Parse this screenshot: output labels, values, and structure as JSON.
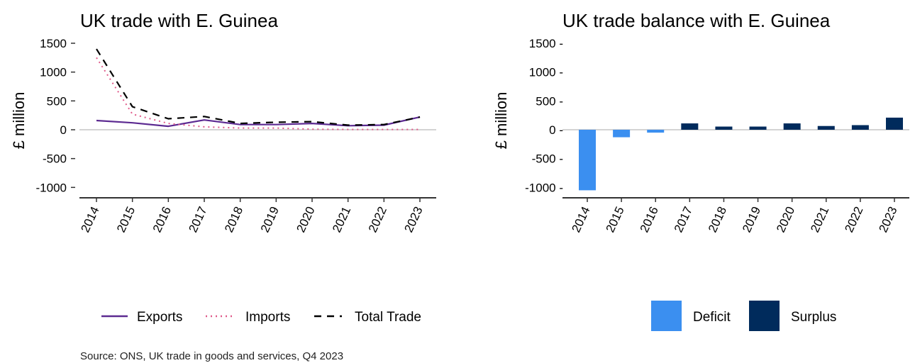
{
  "chart_data": [
    {
      "type": "line",
      "title": "UK trade with E. Guinea",
      "ylabel": "£ million",
      "xlabel": "",
      "x": [
        "2014",
        "2015",
        "2016",
        "2017",
        "2018",
        "2019",
        "2020",
        "2021",
        "2022",
        "2023"
      ],
      "ylim": [
        -1200,
        1500
      ],
      "yticks": [
        1500,
        1000,
        500,
        0,
        -500,
        -1000
      ],
      "ytick_labels": [
        "1500",
        "1000",
        "500",
        "0",
        "-500",
        "-1000"
      ],
      "series": [
        {
          "name": "Exports",
          "values": [
            160,
            120,
            60,
            170,
            90,
            90,
            110,
            70,
            80,
            220
          ],
          "color": "#5c2a91",
          "style": "solid"
        },
        {
          "name": "Imports",
          "values": [
            1250,
            270,
            110,
            50,
            30,
            30,
            10,
            5,
            5,
            5
          ],
          "color": "#e05a8a",
          "style": "dotted"
        },
        {
          "name": "Total Trade",
          "values": [
            1400,
            400,
            190,
            230,
            110,
            130,
            140,
            80,
            90,
            220
          ],
          "color": "#000000",
          "style": "dashed"
        }
      ],
      "legend_position": "bottom"
    },
    {
      "type": "bar",
      "title": "UK trade balance with E. Guinea",
      "ylabel": "£ million",
      "xlabel": "",
      "categories": [
        "2014",
        "2015",
        "2016",
        "2017",
        "2018",
        "2019",
        "2020",
        "2021",
        "2022",
        "2023"
      ],
      "values": [
        -1050,
        -130,
        -50,
        110,
        55,
        55,
        110,
        65,
        80,
        210
      ],
      "ylim": [
        -1200,
        1500
      ],
      "yticks": [
        1500,
        1000,
        500,
        0,
        -500,
        -1000
      ],
      "ytick_labels": [
        "1500 -",
        "1000 -",
        "500 -",
        "0 -",
        "-500 -",
        "-1000 -"
      ],
      "series": [
        {
          "name": "Deficit",
          "color": "#3b8ff0"
        },
        {
          "name": "Surplus",
          "color": "#002b5c"
        }
      ],
      "legend_position": "bottom"
    }
  ],
  "source": "Source: ONS, UK trade in goods and services, Q4 2023"
}
